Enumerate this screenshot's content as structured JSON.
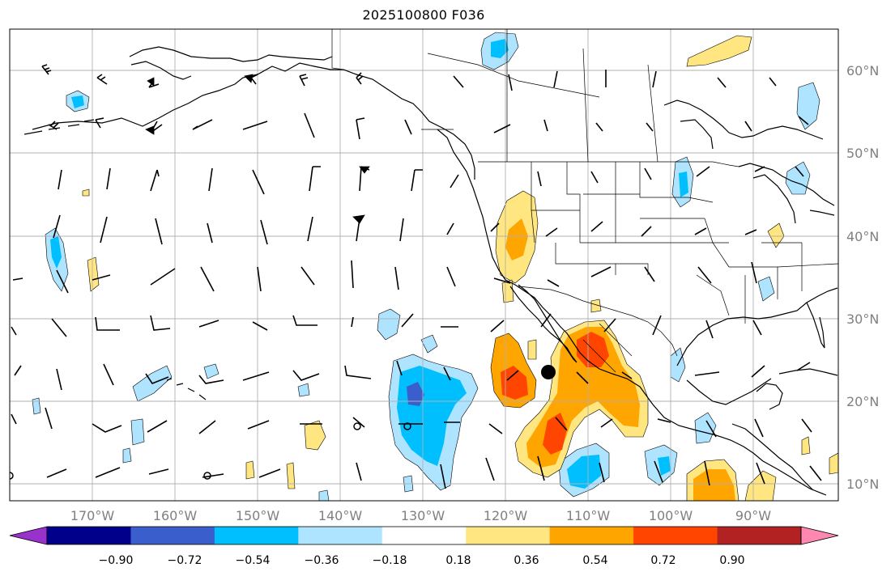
{
  "title": "2025100800 F036",
  "longitude_labels": [
    "170°W",
    "160°W",
    "150°W",
    "140°W",
    "130°W",
    "120°W",
    "110°W",
    "100°W",
    "90°W"
  ],
  "latitude_labels": [
    "60°N",
    "50°N",
    "40°N",
    "30°N",
    "20°N",
    "10°N"
  ],
  "colorbar": {
    "tick_labels": [
      "−0.90",
      "−0.72",
      "−0.54",
      "−0.36",
      "−0.18",
      "0.18",
      "0.36",
      "0.54",
      "0.72",
      "0.90"
    ],
    "colors": [
      "#9932cc",
      "#00008b",
      "#3a5fcd",
      "#00bfff",
      "#aee4ff",
      "#ffffff",
      "#ffe680",
      "#ffa500",
      "#ff4500",
      "#b22222",
      "#ff88b0"
    ],
    "extend": "both"
  },
  "colors": {
    "gridline": "#b0b0b0",
    "coastline": "#000000",
    "axis_label": "#808080"
  },
  "markers": [
    {
      "name": "large-filled-dot",
      "lon": -114.5,
      "lat": 23.5
    },
    {
      "name": "open-circle-1",
      "lon": -131.5,
      "lat": 17.0
    },
    {
      "name": "open-circle-2",
      "lon": -137.5,
      "lat": 17.0
    }
  ]
}
